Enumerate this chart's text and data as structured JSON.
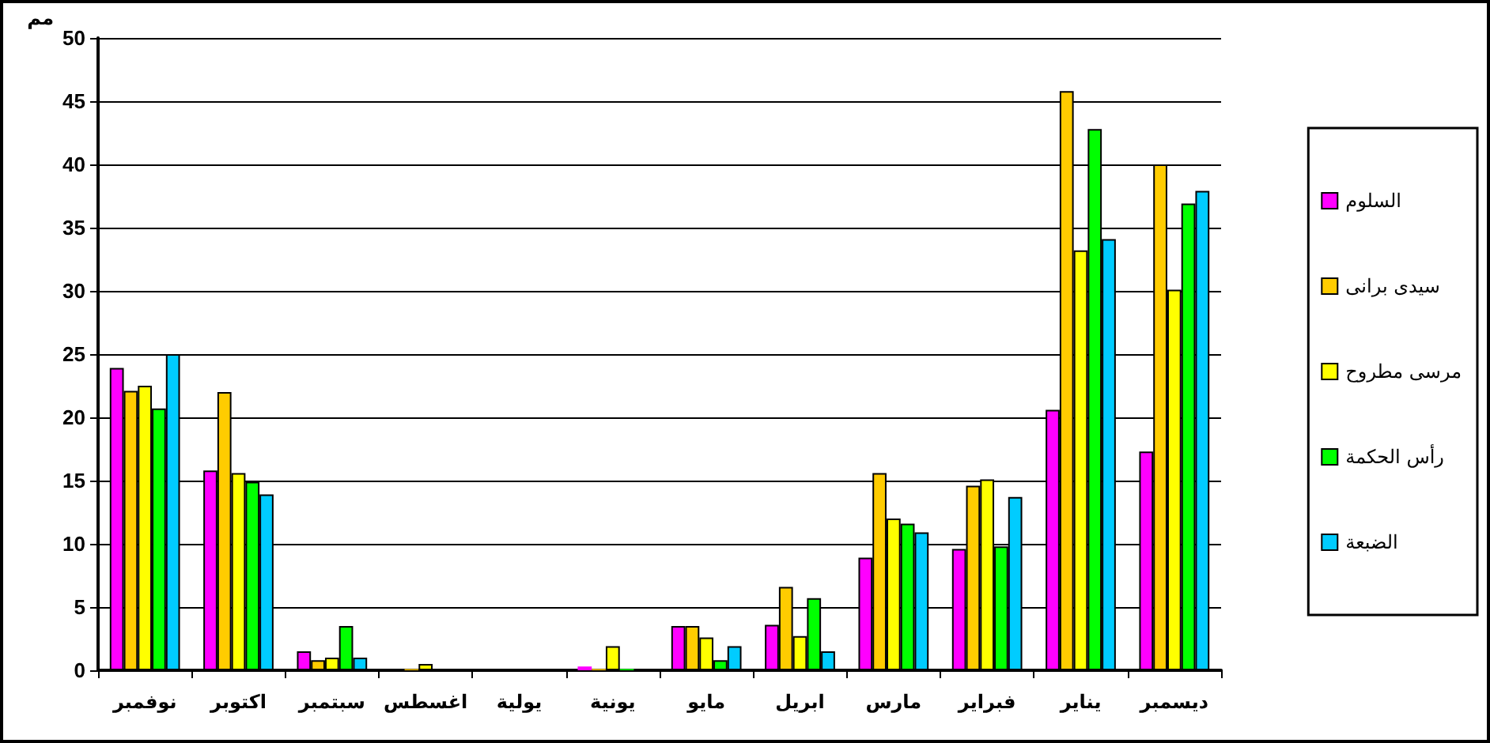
{
  "chart_data": {
    "type": "bar",
    "ylabel": "مم",
    "categories": [
      "نوفمبر",
      "اكتوبر",
      "سبتمبر",
      "اغسطس",
      "يولية",
      "يونية",
      "مايو",
      "ابريل",
      "مارس",
      "فبراير",
      "يناير",
      "ديسمبر"
    ],
    "series": [
      {
        "name": "السلوم",
        "color": "#ff00ff",
        "values": [
          23.9,
          15.8,
          1.5,
          0,
          0,
          0.3,
          3.5,
          3.6,
          8.9,
          9.6,
          20.6,
          17.3
        ]
      },
      {
        "name": "سيدى برانى",
        "color": "#ffcc00",
        "values": [
          22.1,
          22.0,
          0.8,
          0.1,
          0,
          0.1,
          3.5,
          6.6,
          15.6,
          14.6,
          45.8,
          40.0
        ]
      },
      {
        "name": "مرسى مطروح",
        "color": "#ffff00",
        "values": [
          22.5,
          15.6,
          1.0,
          0.5,
          0,
          1.9,
          2.6,
          2.7,
          12.0,
          15.1,
          33.2,
          30.1
        ]
      },
      {
        "name": "رأس الحكمة",
        "color": "#00ff00",
        "values": [
          20.7,
          14.9,
          3.5,
          0,
          0,
          0.1,
          0.8,
          5.7,
          11.6,
          9.8,
          42.8,
          36.9
        ]
      },
      {
        "name": "الضبعة",
        "color": "#00ccff",
        "values": [
          25.0,
          13.9,
          1.0,
          0,
          0,
          0,
          1.9,
          1.5,
          10.9,
          13.7,
          34.1,
          37.9
        ]
      }
    ],
    "ylim": [
      0,
      50
    ],
    "yticks": [
      0,
      5,
      10,
      15,
      20,
      25,
      30,
      35,
      40,
      45,
      50
    ],
    "grid": "y",
    "legend": "right"
  }
}
